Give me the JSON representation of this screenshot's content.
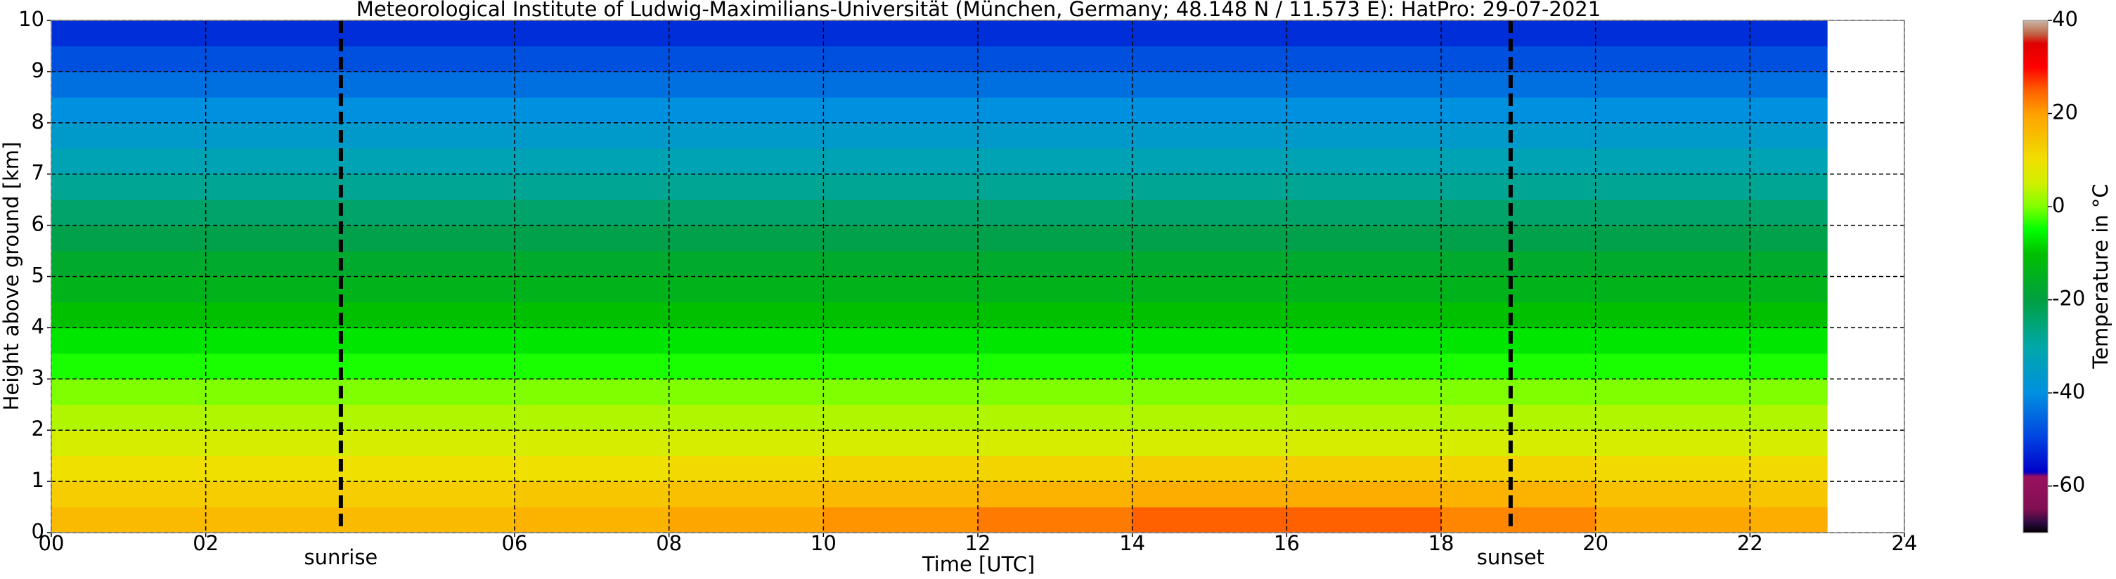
{
  "chart_data": {
    "type": "heatmap",
    "title": "Meteorological Institute of Ludwig-Maximilians-Universität (München, Germany; 48.148 N / 11.573 E):    HatPro: 29-07-2021",
    "xlabel": "Time [UTC]",
    "ylabel": "Height above ground [km]",
    "colorbar_label": "Temperature in °C",
    "x": [
      0,
      2,
      4,
      6,
      8,
      10,
      12,
      14,
      16,
      18,
      20,
      22,
      23
    ],
    "y": [
      0,
      0.5,
      1,
      1.5,
      2,
      2.5,
      3,
      3.5,
      4,
      4.5,
      5,
      5.5,
      6,
      6.5,
      7,
      7.5,
      8,
      8.5,
      9,
      9.5,
      10
    ],
    "values": [
      [
        16,
        16,
        16,
        17,
        19,
        21,
        23,
        25,
        25,
        22,
        19,
        18
      ],
      [
        13,
        13,
        13,
        14,
        15,
        16,
        17,
        18,
        18,
        17,
        15,
        14
      ],
      [
        10,
        10,
        10,
        10,
        11,
        12,
        12,
        13,
        13,
        12,
        11,
        11
      ],
      [
        6,
        6,
        6,
        6,
        6,
        6,
        6,
        6,
        6,
        6,
        6,
        6
      ],
      [
        3,
        3,
        3,
        3,
        3,
        3,
        3,
        3,
        3,
        3,
        3,
        3
      ],
      [
        0,
        0,
        0,
        0,
        0,
        0,
        0,
        0,
        0,
        0,
        0,
        0
      ],
      [
        -4,
        -4,
        -4,
        -4,
        -4,
        -4,
        -4,
        -4,
        -4,
        -4,
        -4,
        -4
      ],
      [
        -7,
        -7,
        -7,
        -7,
        -7,
        -7,
        -7,
        -7,
        -7,
        -7,
        -7,
        -7
      ],
      [
        -10,
        -10,
        -10,
        -10,
        -10,
        -10,
        -10,
        -10,
        -10,
        -10,
        -10,
        -10
      ],
      [
        -14,
        -14,
        -14,
        -14,
        -14,
        -14,
        -14,
        -14,
        -14,
        -14,
        -14,
        -14
      ],
      [
        -17,
        -17,
        -17,
        -17,
        -17,
        -17,
        -17,
        -17,
        -17,
        -17,
        -17,
        -17
      ],
      [
        -21,
        -21,
        -21,
        -21,
        -21,
        -21,
        -21,
        -21,
        -21,
        -21,
        -21,
        -21
      ],
      [
        -24,
        -24,
        -24,
        -24,
        -24,
        -24,
        -24,
        -24,
        -24,
        -24,
        -24,
        -24
      ],
      [
        -28,
        -28,
        -28,
        -28,
        -28,
        -28,
        -28,
        -28,
        -28,
        -28,
        -28,
        -28
      ],
      [
        -32,
        -32,
        -32,
        -32,
        -32,
        -32,
        -32,
        -32,
        -32,
        -32,
        -32,
        -32
      ],
      [
        -36,
        -36,
        -36,
        -36,
        -36,
        -36,
        -36,
        -36,
        -36,
        -36,
        -36,
        -36
      ],
      [
        -40,
        -40,
        -40,
        -40,
        -40,
        -40,
        -40,
        -40,
        -40,
        -40,
        -40,
        -40
      ],
      [
        -44,
        -44,
        -44,
        -44,
        -44,
        -44,
        -44,
        -44,
        -44,
        -44,
        -44,
        -44
      ],
      [
        -48,
        -48,
        -48,
        -48,
        -48,
        -48,
        -48,
        -48,
        -48,
        -48,
        -48,
        -48
      ],
      [
        -52,
        -52,
        -52,
        -52,
        -52,
        -52,
        -52,
        -52,
        -52,
        -52,
        -52,
        -52
      ]
    ],
    "xlim": [
      0,
      24
    ],
    "ylim": [
      0,
      10
    ],
    "xticks": [
      {
        "value": 0,
        "label": "00"
      },
      {
        "value": 2,
        "label": "02"
      },
      {
        "value": 6,
        "label": "06"
      },
      {
        "value": 8,
        "label": "08"
      },
      10,
      12,
      14,
      16,
      18,
      20,
      22,
      24
    ],
    "yticks": [
      0,
      1,
      2,
      3,
      4,
      5,
      6,
      7,
      8,
      9,
      10
    ],
    "grid": true,
    "annotations": [
      {
        "text": "sunrise",
        "x": 3.75
      },
      {
        "text": "sunset",
        "x": 18.9
      }
    ],
    "clim": [
      -70,
      40
    ],
    "cticks": [
      -60,
      -40,
      -20,
      0,
      20,
      40
    ],
    "colorscale": [
      [
        -70,
        "#000000"
      ],
      [
        -68,
        "#2a0a40"
      ],
      [
        -65,
        "#800f50"
      ],
      [
        -58,
        "#9a1060"
      ],
      [
        -57,
        "#0000c8"
      ],
      [
        -50,
        "#0040e0"
      ],
      [
        -40,
        "#0090e0"
      ],
      [
        -30,
        "#00a8a8"
      ],
      [
        -20,
        "#00a040"
      ],
      [
        -10,
        "#00c000"
      ],
      [
        -5,
        "#00ff00"
      ],
      [
        0,
        "#80ff00"
      ],
      [
        5,
        "#d0f000"
      ],
      [
        10,
        "#f0e000"
      ],
      [
        20,
        "#ffa000"
      ],
      [
        25,
        "#ff6000"
      ],
      [
        30,
        "#ff0000"
      ],
      [
        35,
        "#e00000"
      ],
      [
        37,
        "#c06040"
      ],
      [
        40,
        "#c8b8a8"
      ]
    ]
  }
}
